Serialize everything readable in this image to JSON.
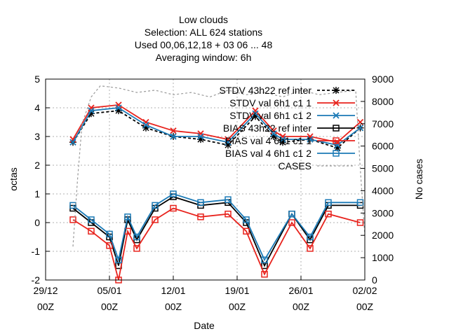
{
  "chart_data": {
    "type": "line",
    "title_lines": [
      "Low clouds",
      "Selection: ALL    624 stations",
      "Used  00,06,12,18  + 03 06 ... 48",
      "Averaging window:  6h"
    ],
    "xlabel": "Date",
    "ylabel": "octas",
    "y2label": "No cases",
    "ylim": [
      -2,
      5
    ],
    "y2lim": [
      0,
      9000
    ],
    "yticks": [
      -2,
      -1,
      0,
      1,
      2,
      3,
      4,
      5
    ],
    "y2ticks": [
      0,
      1000,
      2000,
      3000,
      4000,
      5000,
      6000,
      7000,
      8000,
      9000
    ],
    "xrange_days": [
      0,
      35
    ],
    "xticks": [
      {
        "day": 0,
        "label_top": "29/12",
        "label_bottom": "00Z"
      },
      {
        "day": 7,
        "label_top": "05/01",
        "label_bottom": "00Z"
      },
      {
        "day": 14,
        "label_top": "12/01",
        "label_bottom": "00Z"
      },
      {
        "day": 21,
        "label_top": "19/01",
        "label_bottom": "00Z"
      },
      {
        "day": 28,
        "label_top": "26/01",
        "label_bottom": "00Z"
      },
      {
        "day": 35,
        "label_top": "02/02",
        "label_bottom": "00Z"
      }
    ],
    "grid": true,
    "legend_position": "top-right",
    "series": [
      {
        "name": "STDV 43h22 ref inter",
        "color": "#000000",
        "marker": "star",
        "dash": "4,3",
        "axis": "y",
        "x": [
          3.0,
          5.0,
          8.0,
          11.0,
          14.0,
          17.0,
          20.0,
          23.0,
          25.0,
          26.0,
          29.0,
          32.0,
          34.5
        ],
        "y": [
          2.8,
          3.8,
          3.9,
          3.3,
          3.0,
          2.9,
          2.7,
          3.7,
          3.0,
          2.8,
          2.9,
          2.6,
          3.3
        ]
      },
      {
        "name": "STDV val 6h1 c1 1",
        "color": "#e8231d",
        "marker": "x",
        "dash": "",
        "axis": "y",
        "x": [
          3.0,
          5.0,
          8.0,
          11.0,
          14.0,
          17.0,
          20.0,
          23.0,
          25.0,
          26.0,
          29.0,
          32.0,
          34.5
        ],
        "y": [
          2.9,
          4.0,
          4.1,
          3.5,
          3.2,
          3.1,
          2.9,
          3.9,
          3.2,
          3.0,
          3.0,
          2.8,
          3.5
        ]
      },
      {
        "name": "STDV val 6h1 c1 2",
        "color": "#1b7ab6",
        "marker": "x",
        "dash": "",
        "axis": "y",
        "x": [
          3.0,
          5.0,
          8.0,
          11.0,
          14.0,
          17.0,
          20.0,
          23.0,
          25.0,
          26.0,
          29.0,
          32.0,
          34.5
        ],
        "y": [
          2.8,
          3.9,
          4.0,
          3.4,
          3.0,
          3.0,
          2.8,
          3.8,
          3.1,
          2.9,
          2.9,
          2.7,
          3.3
        ]
      },
      {
        "name": "BIAS 43h22 ref inter",
        "color": "#000000",
        "marker": "square",
        "dash": "",
        "axis": "y",
        "x": [
          3.0,
          5.0,
          7.0,
          8.0,
          9.0,
          10.0,
          12.0,
          14.0,
          17.0,
          20.0,
          22.0,
          24.0,
          27.0,
          29.0,
          31.0,
          34.5
        ],
        "y": [
          0.5,
          0.0,
          -0.5,
          -1.5,
          0.1,
          -0.6,
          0.5,
          0.9,
          0.6,
          0.7,
          0.0,
          -1.5,
          0.3,
          -0.6,
          0.6,
          0.6
        ]
      },
      {
        "name": "BIAS val 4 6h1 c1 1",
        "color": "#e8231d",
        "marker": "square",
        "dash": "",
        "axis": "y",
        "x": [
          3.0,
          5.0,
          7.0,
          8.0,
          9.0,
          10.0,
          12.0,
          14.0,
          17.0,
          20.0,
          22.0,
          24.0,
          27.0,
          29.0,
          31.0,
          34.5
        ],
        "y": [
          0.1,
          -0.3,
          -0.8,
          -2.0,
          -0.3,
          -0.9,
          0.1,
          0.5,
          0.2,
          0.3,
          -0.3,
          -1.8,
          0.0,
          -0.9,
          0.3,
          0.0
        ]
      },
      {
        "name": "BIAS val 4 6h1 c1 2",
        "color": "#1b7ab6",
        "marker": "square",
        "dash": "",
        "axis": "y",
        "x": [
          3.0,
          5.0,
          7.0,
          8.0,
          9.0,
          10.0,
          12.0,
          14.0,
          17.0,
          20.0,
          22.0,
          24.0,
          27.0,
          29.0,
          31.0,
          34.5
        ],
        "y": [
          0.6,
          0.1,
          -0.4,
          -1.3,
          0.2,
          -0.5,
          0.6,
          1.0,
          0.7,
          0.8,
          0.1,
          -1.3,
          0.3,
          -0.5,
          0.7,
          0.7
        ]
      },
      {
        "name": "CASES",
        "color": "#999999",
        "marker": "none",
        "dash": "3,3",
        "axis": "y2",
        "x": [
          3.0,
          3.5,
          4.0,
          5.0,
          6.0,
          8.0,
          10.0,
          12.0,
          14.0,
          16.0,
          18.0,
          20.0,
          22.0,
          24.0,
          26.0,
          28.0,
          30.0,
          32.0,
          34.0,
          34.5,
          35.0
        ],
        "y": [
          1500,
          4500,
          7000,
          8200,
          8700,
          8600,
          8400,
          8500,
          8300,
          8400,
          8200,
          8500,
          8300,
          8400,
          8200,
          8500,
          8300,
          8400,
          8500,
          5000,
          2000
        ]
      }
    ]
  }
}
